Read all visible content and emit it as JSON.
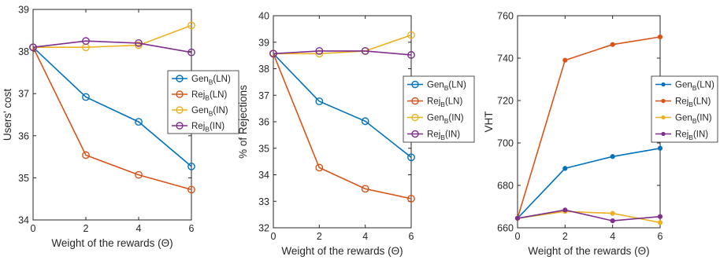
{
  "chart_data": [
    {
      "type": "line",
      "xlabel": "Weight of the rewards (Θ)",
      "ylabel": "Users' cost",
      "x": [
        0,
        2,
        4,
        6
      ],
      "xlim": [
        0,
        6
      ],
      "ylim": [
        34,
        39
      ],
      "xticks": [
        "0",
        "2",
        "4",
        "6"
      ],
      "yticks": [
        "34",
        "35",
        "36",
        "37",
        "38",
        "39"
      ],
      "grid": false,
      "legend_position": "right",
      "series": [
        {
          "name": "Gen",
          "sub": "B",
          "suffix": "(LN)",
          "values": [
            38.1,
            36.92,
            36.33,
            35.27
          ],
          "color": "#0072BD",
          "marker": "circle"
        },
        {
          "name": "Rej",
          "sub": "B",
          "suffix": "(LN)",
          "values": [
            38.1,
            35.54,
            35.07,
            34.72
          ],
          "color": "#D95319",
          "marker": "circle"
        },
        {
          "name": "Gen",
          "sub": "B",
          "suffix": "(IN)",
          "values": [
            38.1,
            38.1,
            38.15,
            38.62
          ],
          "color": "#EDB120",
          "marker": "circle"
        },
        {
          "name": "Rej",
          "sub": "B",
          "suffix": "(IN)",
          "values": [
            38.1,
            38.25,
            38.2,
            37.98
          ],
          "color": "#7E2F8E",
          "marker": "circle"
        }
      ]
    },
    {
      "type": "line",
      "xlabel": "Weight of the rewards (Θ)",
      "ylabel": "% of Rejections",
      "x": [
        0,
        2,
        4,
        6
      ],
      "xlim": [
        0,
        6
      ],
      "ylim": [
        32,
        40
      ],
      "xticks": [
        "0",
        "2",
        "4",
        "6"
      ],
      "yticks": [
        "32",
        "33",
        "34",
        "35",
        "36",
        "37",
        "38",
        "39",
        "40"
      ],
      "grid": false,
      "legend_position": "right",
      "series": [
        {
          "name": "Gen",
          "sub": "B",
          "suffix": "(LN)",
          "values": [
            38.57,
            36.77,
            36.02,
            34.66
          ],
          "color": "#0072BD",
          "marker": "circle"
        },
        {
          "name": "Rej",
          "sub": "B",
          "suffix": "(LN)",
          "values": [
            38.57,
            34.27,
            33.47,
            33.1
          ],
          "color": "#D95319",
          "marker": "circle"
        },
        {
          "name": "Gen",
          "sub": "B",
          "suffix": "(IN)",
          "values": [
            38.57,
            38.57,
            38.67,
            39.27
          ],
          "color": "#EDB120",
          "marker": "circle"
        },
        {
          "name": "Rej",
          "sub": "B",
          "suffix": "(IN)",
          "values": [
            38.57,
            38.67,
            38.67,
            38.52
          ],
          "color": "#7E2F8E",
          "marker": "circle"
        }
      ]
    },
    {
      "type": "line",
      "xlabel": "Weight of the rewards (Θ)",
      "ylabel": "VHT",
      "x": [
        0,
        2,
        4,
        6
      ],
      "xlim": [
        0,
        6
      ],
      "ylim": [
        660,
        760
      ],
      "xticks": [
        "0",
        "2",
        "4",
        "6"
      ],
      "yticks": [
        "660",
        "680",
        "700",
        "720",
        "740",
        "760"
      ],
      "grid": false,
      "legend_position": "right",
      "series": [
        {
          "name": "Gen",
          "sub": "B",
          "suffix": "(LN)",
          "values": [
            664.5,
            688.0,
            693.6,
            697.5
          ],
          "color": "#0072BD",
          "marker": "dot"
        },
        {
          "name": "Rej",
          "sub": "B",
          "suffix": "(LN)",
          "values": [
            664.5,
            739.0,
            746.4,
            750.0
          ],
          "color": "#D95319",
          "marker": "dot"
        },
        {
          "name": "Gen",
          "sub": "B",
          "suffix": "(IN)",
          "values": [
            664.5,
            667.7,
            666.8,
            662.5
          ],
          "color": "#EDB120",
          "marker": "dot"
        },
        {
          "name": "Rej",
          "sub": "B",
          "suffix": "(IN)",
          "values": [
            664.5,
            668.4,
            663.3,
            665.3
          ],
          "color": "#7E2F8E",
          "marker": "dot"
        }
      ]
    }
  ]
}
